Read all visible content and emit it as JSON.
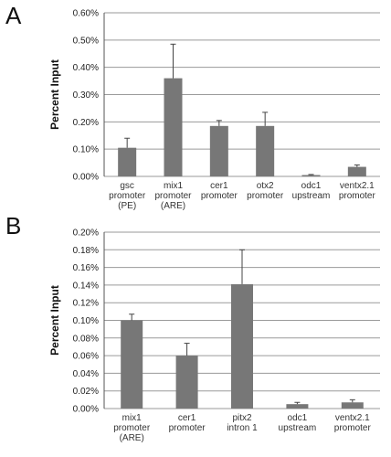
{
  "chart_data": [
    {
      "panel": "A",
      "type": "bar",
      "ylabel": "Percent Input",
      "ylim": [
        0,
        0.6
      ],
      "yticks": [
        0,
        0.1,
        0.2,
        0.3,
        0.4,
        0.5,
        0.6
      ],
      "ytick_labels": [
        "0.00%",
        "0.10%",
        "0.20%",
        "0.30%",
        "0.40%",
        "0.50%",
        "0.60%"
      ],
      "grid": true,
      "categories": [
        [
          "gsc",
          "promoter",
          "(PE)"
        ],
        [
          "mix1",
          "promoter",
          "(ARE)"
        ],
        [
          "cer1",
          "promoter"
        ],
        [
          "otx2",
          "promoter"
        ],
        [
          "odc1",
          "upstream"
        ],
        [
          "ventx2.1",
          "promoter"
        ]
      ],
      "values": [
        0.105,
        0.36,
        0.185,
        0.185,
        0.005,
        0.035
      ],
      "errors": [
        0.035,
        0.125,
        0.02,
        0.05,
        0.002,
        0.007
      ],
      "bar_color": "#777777"
    },
    {
      "panel": "B",
      "type": "bar",
      "ylabel": "Percent Input",
      "ylim": [
        0,
        0.2
      ],
      "yticks": [
        0,
        0.02,
        0.04,
        0.06,
        0.08,
        0.1,
        0.12,
        0.14,
        0.16,
        0.18,
        0.2
      ],
      "ytick_labels": [
        "0.00%",
        "0.02%",
        "0.04%",
        "0.06%",
        "0.08%",
        "0.10%",
        "0.12%",
        "0.14%",
        "0.16%",
        "0.18%",
        "0.20%"
      ],
      "grid": true,
      "categories": [
        [
          "mix1",
          "promoter",
          "(ARE)"
        ],
        [
          "cer1",
          "promoter"
        ],
        [
          "pitx2",
          "intron 1"
        ],
        [
          "odc1",
          "upstream"
        ],
        [
          "ventx2.1",
          "promoter"
        ]
      ],
      "values": [
        0.1,
        0.06,
        0.141,
        0.005,
        0.007
      ],
      "errors": [
        0.007,
        0.014,
        0.039,
        0.002,
        0.003
      ],
      "bar_color": "#777777"
    }
  ]
}
